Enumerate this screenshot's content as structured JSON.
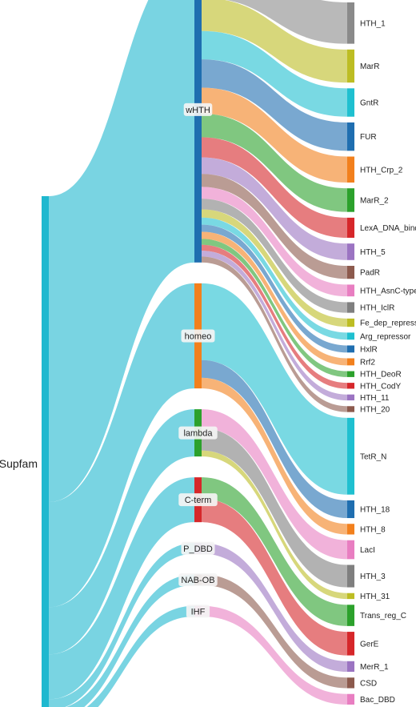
{
  "chart_data": {
    "type": "sankey",
    "title": "",
    "root": {
      "name": "Supfam",
      "color": "#1fb8cf"
    },
    "groups": [
      {
        "name": "wHTH",
        "color": "#1f6eb0"
      },
      {
        "name": "homeo",
        "color": "#f2801d"
      },
      {
        "name": "lambda",
        "color": "#2ca12c"
      },
      {
        "name": "C-term",
        "color": "#d6272a"
      },
      {
        "name": "P_DBD",
        "color": "#9b74c2"
      },
      {
        "name": "NAB-OB",
        "color": "#8c5a4d"
      },
      {
        "name": "IHF",
        "color": "#e87ec1"
      }
    ],
    "families": [
      {
        "name": "HTH_1",
        "group": "wHTH",
        "value": 3.5,
        "color": "#8a8a8a"
      },
      {
        "name": "MarR",
        "group": "wHTH",
        "value": 2.8,
        "color": "#bdbd23"
      },
      {
        "name": "GntR",
        "group": "wHTH",
        "value": 2.4,
        "color": "#1fc0d0"
      },
      {
        "name": "FUR",
        "group": "wHTH",
        "value": 2.4,
        "color": "#1f6eb0"
      },
      {
        "name": "HTH_Crp_2",
        "group": "wHTH",
        "value": 2.2,
        "color": "#f2801d"
      },
      {
        "name": "MarR_2",
        "group": "wHTH",
        "value": 2.0,
        "color": "#2ca12c"
      },
      {
        "name": "LexA_DNA_bind",
        "group": "wHTH",
        "value": 1.7,
        "color": "#d6272a"
      },
      {
        "name": "HTH_5",
        "group": "wHTH",
        "value": 1.4,
        "color": "#9b74c2"
      },
      {
        "name": "PadR",
        "group": "wHTH",
        "value": 1.1,
        "color": "#8c5a4d"
      },
      {
        "name": "HTH_AsnC-type",
        "group": "wHTH",
        "value": 1.0,
        "color": "#e87ec1"
      },
      {
        "name": "HTH_IclR",
        "group": "wHTH",
        "value": 0.9,
        "color": "#7f7f7f"
      },
      {
        "name": "Fe_dep_repress",
        "group": "wHTH",
        "value": 0.7,
        "color": "#bdbd23"
      },
      {
        "name": "Arg_repressor",
        "group": "wHTH",
        "value": 0.6,
        "color": "#1fc0d0"
      },
      {
        "name": "HxlR",
        "group": "wHTH",
        "value": 0.6,
        "color": "#1f6eb0"
      },
      {
        "name": "Rrf2",
        "group": "wHTH",
        "value": 0.6,
        "color": "#f2801d"
      },
      {
        "name": "HTH_DeoR",
        "group": "wHTH",
        "value": 0.5,
        "color": "#2ca12c"
      },
      {
        "name": "HTH_CodY",
        "group": "wHTH",
        "value": 0.5,
        "color": "#d6272a"
      },
      {
        "name": "HTH_11",
        "group": "wHTH",
        "value": 0.5,
        "color": "#9b74c2"
      },
      {
        "name": "HTH_20",
        "group": "wHTH",
        "value": 0.5,
        "color": "#8c5a4d"
      },
      {
        "name": "TetR_N",
        "group": "homeo",
        "value": 6.5,
        "color": "#1fc0d0"
      },
      {
        "name": "HTH_18",
        "group": "homeo",
        "value": 1.5,
        "color": "#1f6eb0"
      },
      {
        "name": "HTH_8",
        "group": "homeo",
        "value": 0.9,
        "color": "#f2801d"
      },
      {
        "name": "LacI",
        "group": "lambda",
        "value": 1.6,
        "color": "#e87ec1"
      },
      {
        "name": "HTH_3",
        "group": "lambda",
        "value": 1.9,
        "color": "#7f7f7f"
      },
      {
        "name": "HTH_31",
        "group": "lambda",
        "value": 0.5,
        "color": "#bdbd23"
      },
      {
        "name": "Trans_reg_C",
        "group": "C-term",
        "value": 1.8,
        "color": "#2ca12c"
      },
      {
        "name": "GerE",
        "group": "C-term",
        "value": 2.0,
        "color": "#d6272a"
      },
      {
        "name": "MerR_1",
        "group": "P_DBD",
        "value": 0.9,
        "color": "#9b74c2"
      },
      {
        "name": "CSD",
        "group": "NAB-OB",
        "value": 0.9,
        "color": "#8c5a4d"
      },
      {
        "name": "Bac_DBD",
        "group": "IHF",
        "value": 0.9,
        "color": "#e87ec1"
      }
    ]
  }
}
